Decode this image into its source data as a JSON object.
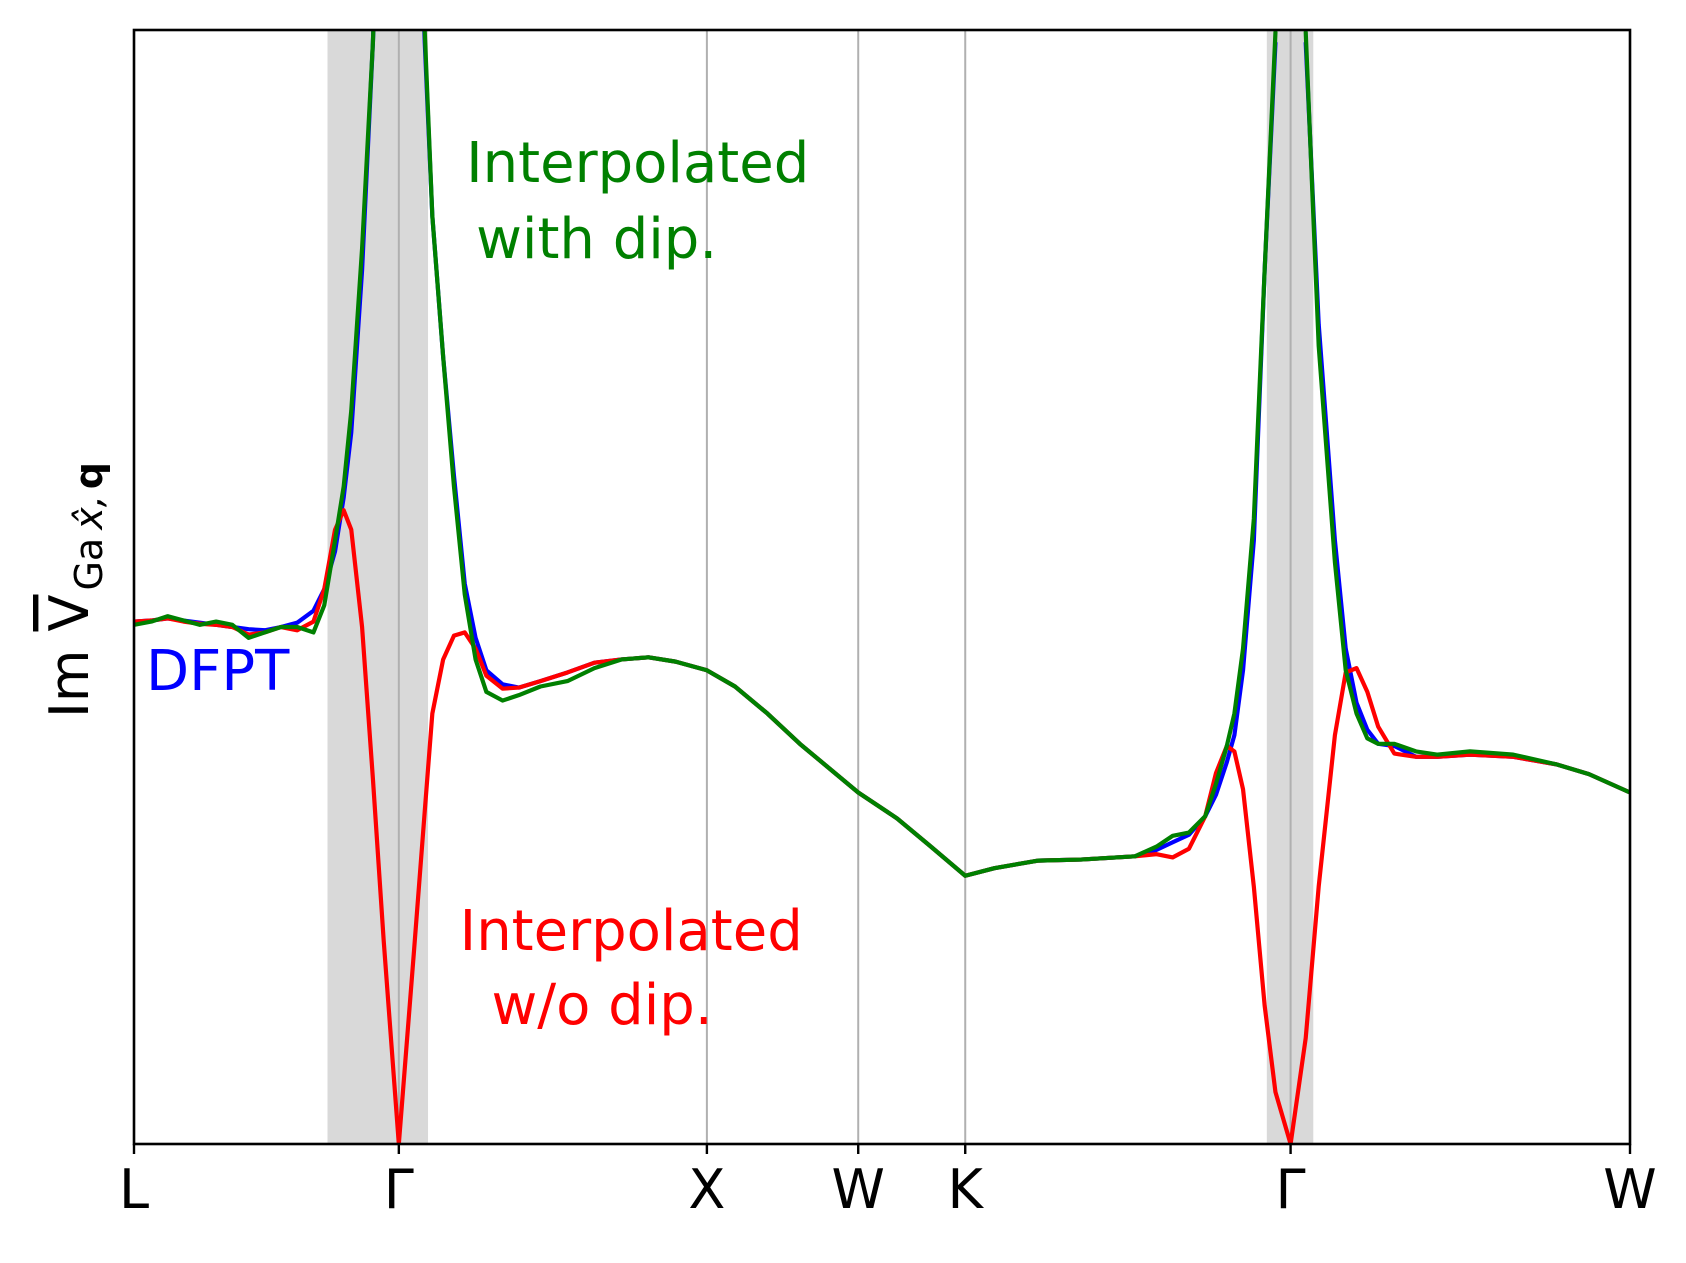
{
  "chart_data": {
    "type": "line",
    "ylabel": [
      "Im",
      "V",
      "Ga",
      "x̂,",
      "q"
    ],
    "xlim": [
      0,
      1384
    ],
    "ylim": [
      0,
      1030
    ],
    "xticks": [
      {
        "value": 0,
        "label": "L"
      },
      {
        "value": 245,
        "label": "Γ"
      },
      {
        "value": 530,
        "label": "X"
      },
      {
        "value": 670,
        "label": "W"
      },
      {
        "value": 769,
        "label": "K"
      },
      {
        "value": 1070,
        "label": "Γ"
      },
      {
        "value": 1384,
        "label": "W"
      }
    ],
    "grid": true,
    "shaded_x": [
      [
        179,
        272
      ],
      [
        1048,
        1091
      ]
    ],
    "shade_color": "#d9d9d9",
    "x": [
      0,
      16,
      31,
      46,
      61,
      76,
      91,
      106,
      121,
      136,
      151,
      166,
      176,
      186,
      194,
      201,
      211,
      221,
      231,
      245,
      259,
      269,
      276,
      286,
      296,
      306,
      316,
      326,
      341,
      356,
      376,
      401,
      426,
      451,
      476,
      501,
      530,
      556,
      586,
      616,
      646,
      670,
      706,
      736,
      769,
      796,
      836,
      876,
      926,
      946,
      961,
      976,
      991,
      1001,
      1011,
      1018,
      1026,
      1036,
      1046,
      1056,
      1070,
      1084,
      1096,
      1111,
      1121,
      1131,
      1141,
      1151,
      1166,
      1186,
      1206,
      1236,
      1276,
      1316,
      1346,
      1384
    ],
    "series": [
      {
        "name": "DFPT",
        "color": "#0000ff",
        "values": [
          483,
          484,
          486,
          484,
          482,
          480,
          478,
          476,
          475,
          478,
          482,
          493,
          513,
          548,
          598,
          658,
          808,
          1018,
          1300,
          null,
          1300,
          1018,
          858,
          728,
          618,
          518,
          468,
          438,
          425,
          422,
          428,
          436,
          445,
          448,
          450,
          446,
          438,
          423,
          398,
          370,
          345,
          325,
          301,
          276,
          248,
          255,
          262,
          263,
          266,
          272,
          279,
          286,
          303,
          323,
          353,
          378,
          438,
          558,
          808,
          1018,
          null,
          1018,
          758,
          558,
          458,
          408,
          383,
          370,
          368,
          358,
          358,
          360,
          358,
          351,
          342,
          325
        ]
      },
      {
        "name": [
          "Interpolated",
          "w/o dip."
        ],
        "color": "#ff0000",
        "values": [
          483,
          484,
          486,
          483,
          481,
          480,
          478,
          471,
          473,
          478,
          475,
          483,
          513,
          568,
          586,
          568,
          478,
          338,
          188,
          0,
          178,
          308,
          398,
          448,
          470,
          473,
          458,
          433,
          421,
          422,
          428,
          436,
          445,
          448,
          450,
          446,
          438,
          423,
          398,
          370,
          345,
          325,
          301,
          276,
          248,
          255,
          262,
          263,
          266,
          268,
          265,
          273,
          303,
          343,
          368,
          363,
          328,
          238,
          128,
          48,
          0,
          98,
          238,
          378,
          436,
          440,
          418,
          386,
          361,
          358,
          358,
          360,
          358,
          351,
          342,
          325
        ]
      },
      {
        "name": [
          "Interpolated",
          "with dip."
        ],
        "color": "#008000",
        "values": [
          480,
          483,
          488,
          484,
          480,
          483,
          480,
          468,
          473,
          478,
          478,
          473,
          498,
          558,
          608,
          678,
          828,
          1018,
          1300,
          null,
          1300,
          1028,
          858,
          728,
          608,
          508,
          448,
          418,
          410,
          415,
          423,
          428,
          440,
          448,
          450,
          446,
          438,
          423,
          398,
          370,
          345,
          325,
          301,
          276,
          248,
          255,
          262,
          263,
          266,
          275,
          285,
          288,
          303,
          333,
          368,
          398,
          458,
          578,
          808,
          1028,
          null,
          1028,
          738,
          538,
          438,
          398,
          375,
          370,
          370,
          363,
          360,
          363,
          360,
          351,
          342,
          325
        ]
      }
    ]
  }
}
